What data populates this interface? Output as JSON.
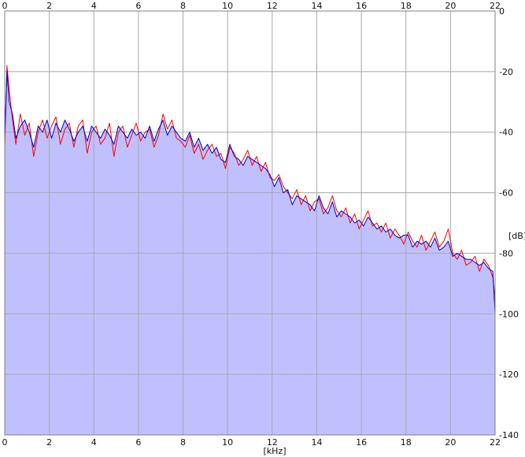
{
  "chart_data": {
    "type": "area",
    "title": "",
    "xlabel": "[kHz]",
    "ylabel": "[dB]",
    "xlim": [
      0,
      22
    ],
    "ylim": [
      -140,
      0
    ],
    "x_ticks": [
      "0",
      "2",
      "4",
      "6",
      "8",
      "10",
      "12",
      "14",
      "16",
      "18",
      "20",
      "22"
    ],
    "y_ticks": [
      "0",
      "-20",
      "-40",
      "-60",
      "-80",
      "-100",
      "-120",
      "-140"
    ],
    "grid": true,
    "legend": "none",
    "background_color": "#ffffff",
    "plot_background": "#ffffff",
    "fill_color": "#c0c0ff",
    "grid_color": "#a8a8a8",
    "series": [
      {
        "color": "#ff0000",
        "x": [
          0,
          0.1,
          0.2,
          0.35,
          0.5,
          0.7,
          0.9,
          1.1,
          1.3,
          1.5,
          1.7,
          1.9,
          2.1,
          2.3,
          2.5,
          2.7,
          2.9,
          3.1,
          3.3,
          3.5,
          3.7,
          3.9,
          4.1,
          4.3,
          4.5,
          4.7,
          4.9,
          5.1,
          5.3,
          5.5,
          5.7,
          5.9,
          6.1,
          6.3,
          6.5,
          6.7,
          6.9,
          7.1,
          7.3,
          7.5,
          7.7,
          7.9,
          8.1,
          8.3,
          8.5,
          8.7,
          8.9,
          9.1,
          9.3,
          9.5,
          9.7,
          9.9,
          10.1,
          10.3,
          10.5,
          10.7,
          10.9,
          11.1,
          11.3,
          11.5,
          11.7,
          11.9,
          12.1,
          12.3,
          12.5,
          12.7,
          12.9,
          13.1,
          13.3,
          13.5,
          13.7,
          13.9,
          14.1,
          14.3,
          14.5,
          14.7,
          14.9,
          15.1,
          15.3,
          15.5,
          15.7,
          15.9,
          16.1,
          16.3,
          16.5,
          16.7,
          16.9,
          17.1,
          17.3,
          17.5,
          17.7,
          17.9,
          18.1,
          18.3,
          18.5,
          18.7,
          18.9,
          19.1,
          19.3,
          19.5,
          19.7,
          19.9,
          20.1,
          20.3,
          20.5,
          20.7,
          20.9,
          21.1,
          21.3,
          21.5,
          21.7,
          21.9,
          22
        ],
        "values": [
          -45,
          -18,
          -26,
          -36,
          -44,
          -34,
          -41,
          -37,
          -48,
          -40,
          -36,
          -42,
          -38,
          -35,
          -44,
          -39,
          -37,
          -45,
          -38,
          -36,
          -47,
          -40,
          -38,
          -44,
          -42,
          -37,
          -48,
          -40,
          -38,
          -45,
          -41,
          -37,
          -43,
          -40,
          -39,
          -45,
          -41,
          -34,
          -39,
          -36,
          -42,
          -43,
          -45,
          -41,
          -47,
          -44,
          -49,
          -46,
          -44,
          -48,
          -47,
          -52,
          -45,
          -47,
          -51,
          -49,
          -46,
          -51,
          -48,
          -53,
          -50,
          -55,
          -56,
          -54,
          -58,
          -60,
          -62,
          -59,
          -64,
          -61,
          -66,
          -63,
          -62,
          -67,
          -65,
          -61,
          -66,
          -68,
          -65,
          -70,
          -67,
          -72,
          -69,
          -66,
          -71,
          -70,
          -73,
          -70,
          -75,
          -72,
          -74,
          -77,
          -73,
          -76,
          -78,
          -74,
          -79,
          -76,
          -73,
          -78,
          -76,
          -72,
          -80,
          -82,
          -79,
          -84,
          -83,
          -81,
          -86,
          -82,
          -84,
          -88,
          -95
        ]
      },
      {
        "color": "#0000c8",
        "x": [
          0,
          0.1,
          0.2,
          0.35,
          0.5,
          0.7,
          0.9,
          1.1,
          1.3,
          1.5,
          1.7,
          1.9,
          2.1,
          2.3,
          2.5,
          2.7,
          2.9,
          3.1,
          3.3,
          3.5,
          3.7,
          3.9,
          4.1,
          4.3,
          4.5,
          4.7,
          4.9,
          5.1,
          5.3,
          5.5,
          5.7,
          5.9,
          6.1,
          6.3,
          6.5,
          6.7,
          6.9,
          7.1,
          7.3,
          7.5,
          7.7,
          7.9,
          8.1,
          8.3,
          8.5,
          8.7,
          8.9,
          9.1,
          9.3,
          9.5,
          9.7,
          9.9,
          10.1,
          10.3,
          10.5,
          10.7,
          10.9,
          11.1,
          11.3,
          11.5,
          11.7,
          11.9,
          12.1,
          12.3,
          12.5,
          12.7,
          12.9,
          13.1,
          13.3,
          13.5,
          13.7,
          13.9,
          14.1,
          14.3,
          14.5,
          14.7,
          14.9,
          15.1,
          15.3,
          15.5,
          15.7,
          15.9,
          16.1,
          16.3,
          16.5,
          16.7,
          16.9,
          17.1,
          17.3,
          17.5,
          17.7,
          17.9,
          18.1,
          18.3,
          18.5,
          18.7,
          18.9,
          19.1,
          19.3,
          19.5,
          19.7,
          19.9,
          20.1,
          20.3,
          20.5,
          20.7,
          20.9,
          21.1,
          21.3,
          21.5,
          21.7,
          21.9,
          22
        ],
        "values": [
          -42,
          -20,
          -30,
          -34,
          -42,
          -38,
          -36,
          -40,
          -45,
          -38,
          -40,
          -36,
          -42,
          -37,
          -40,
          -36,
          -39,
          -43,
          -40,
          -38,
          -43,
          -38,
          -40,
          -42,
          -39,
          -41,
          -44,
          -38,
          -40,
          -42,
          -39,
          -41,
          -40,
          -42,
          -38,
          -43,
          -39,
          -36,
          -41,
          -38,
          -40,
          -42,
          -43,
          -40,
          -45,
          -42,
          -46,
          -44,
          -47,
          -45,
          -49,
          -50,
          -44,
          -48,
          -49,
          -51,
          -48,
          -49,
          -50,
          -51,
          -52,
          -54,
          -58,
          -55,
          -60,
          -59,
          -64,
          -61,
          -62,
          -63,
          -64,
          -66,
          -61,
          -65,
          -67,
          -63,
          -68,
          -66,
          -67,
          -68,
          -70,
          -69,
          -71,
          -68,
          -70,
          -72,
          -71,
          -73,
          -72,
          -74,
          -75,
          -74,
          -74,
          -78,
          -76,
          -77,
          -76,
          -78,
          -75,
          -79,
          -78,
          -76,
          -81,
          -80,
          -81,
          -82,
          -82,
          -83,
          -84,
          -83,
          -85,
          -86,
          -100
        ]
      }
    ]
  }
}
